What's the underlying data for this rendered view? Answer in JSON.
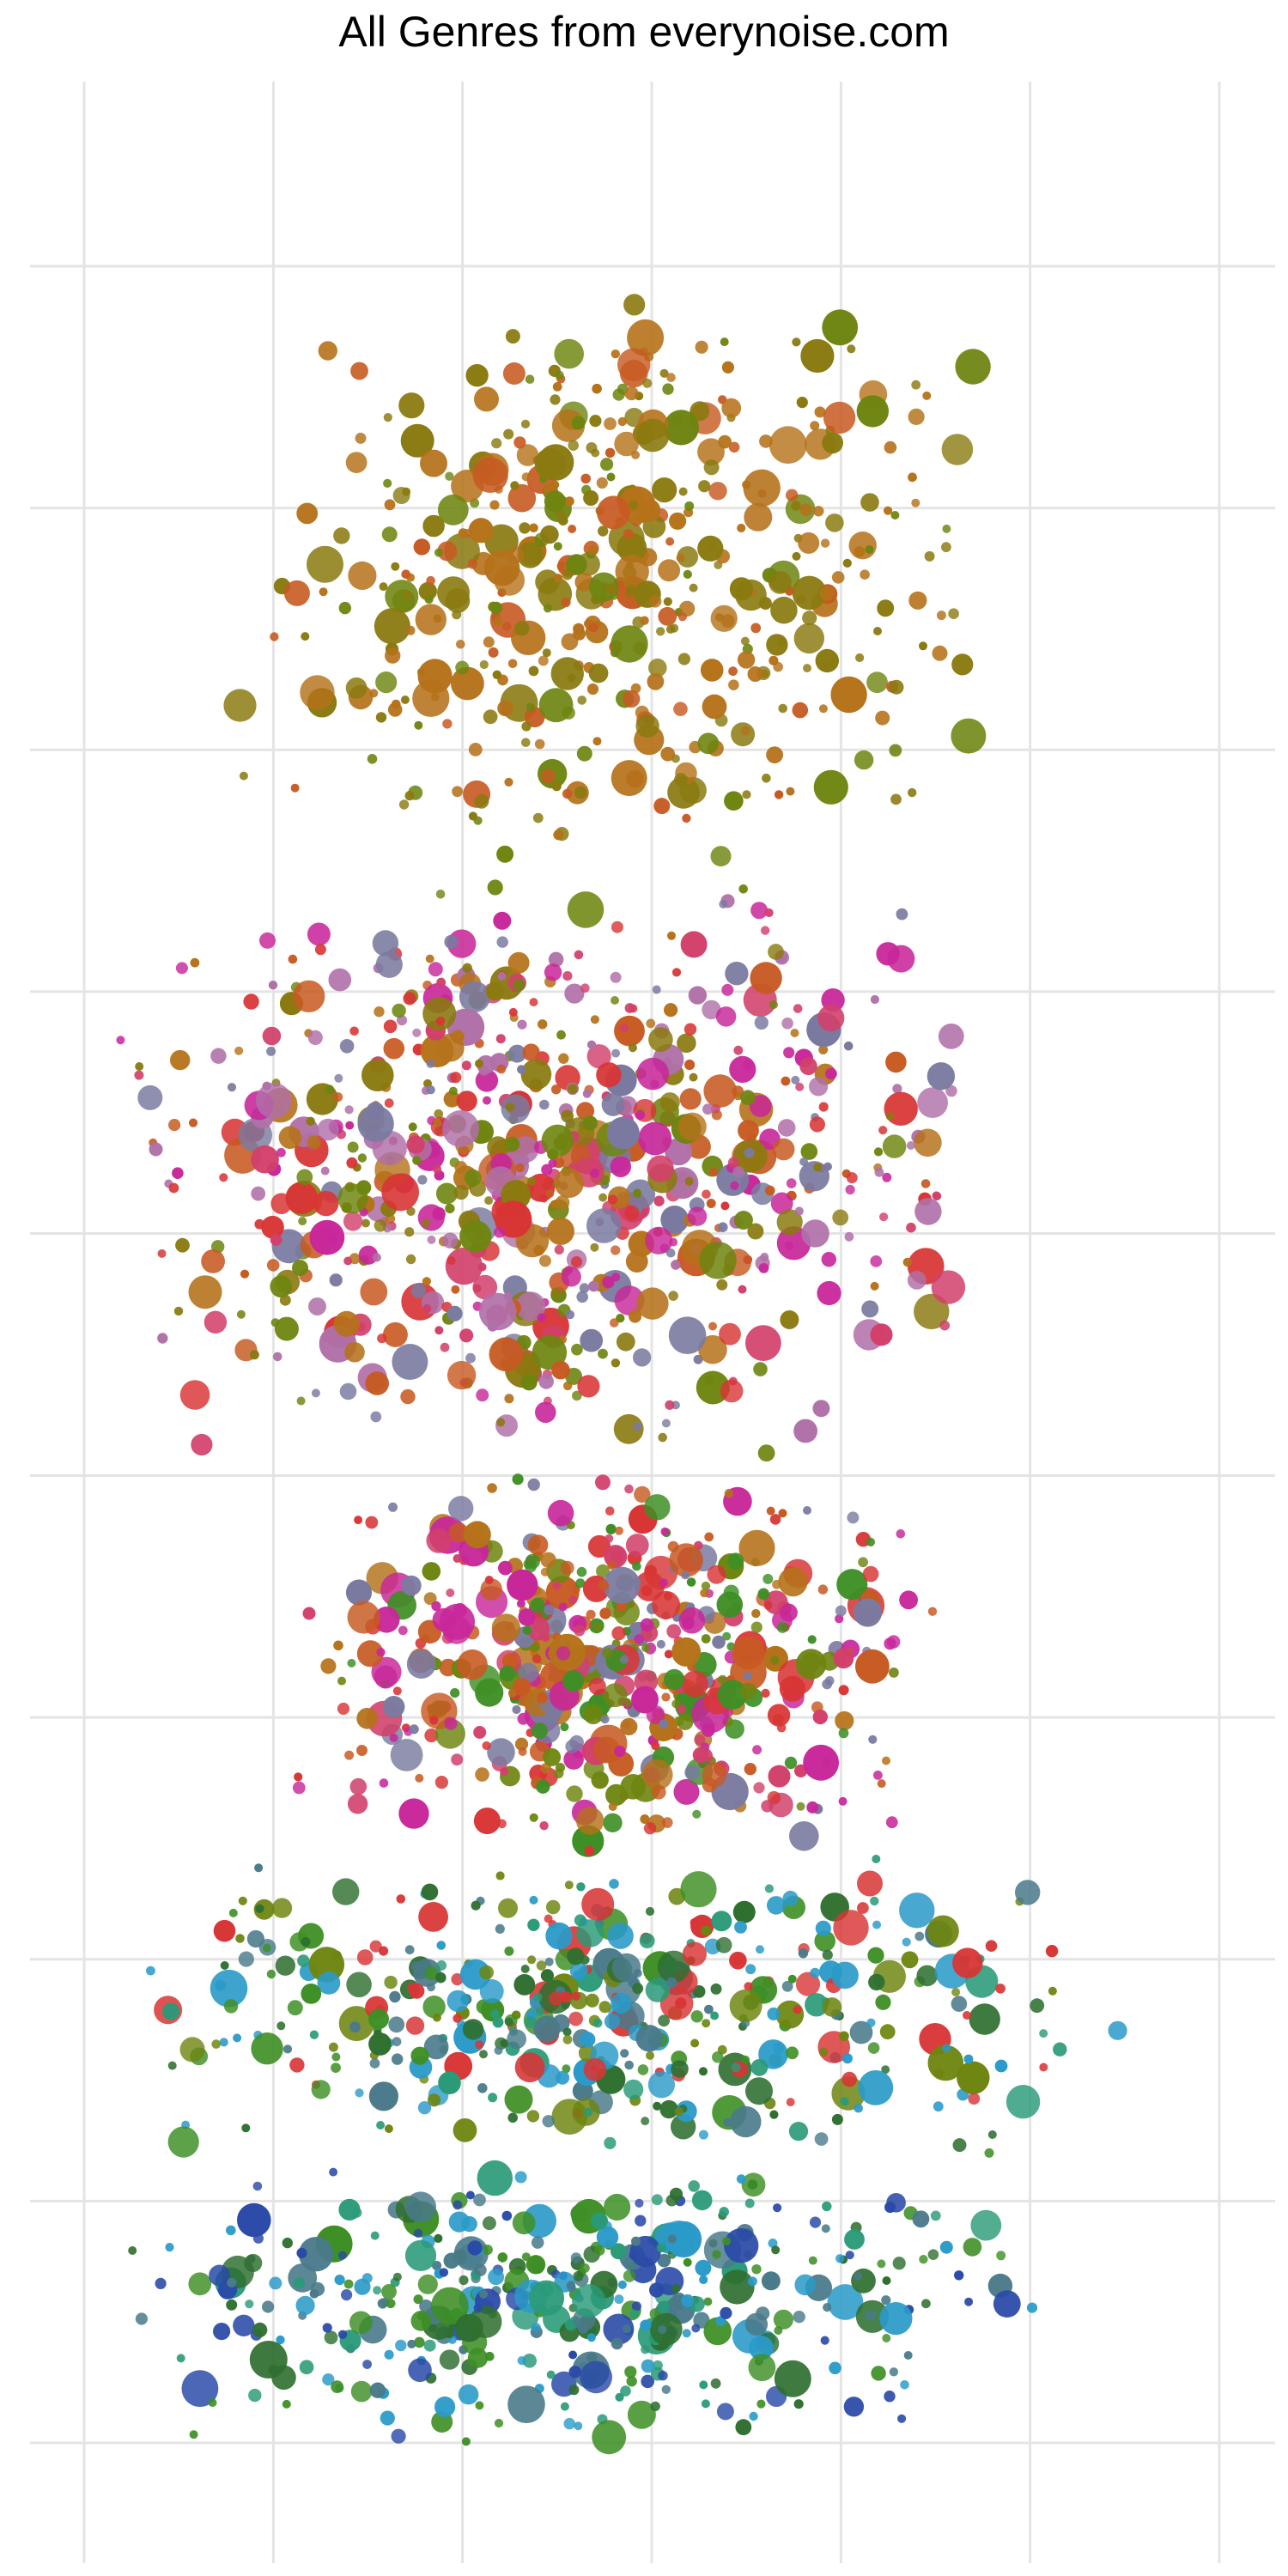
{
  "chart_data": {
    "type": "scatter",
    "title": "All Genres from everynoise.com",
    "xlabel": "",
    "ylabel": "",
    "xlim": [
      0,
      1
    ],
    "ylim": [
      0,
      1
    ],
    "grid": true,
    "legend": "none",
    "x_gridlines": [
      0.0,
      0.1667,
      0.3333,
      0.5,
      0.6667,
      0.8333,
      1.0
    ],
    "y_gridlines": [
      0.0,
      0.1111,
      0.2222,
      0.3333,
      0.4444,
      0.5556,
      0.6667,
      0.7778,
      0.8889,
      1.0
    ],
    "colors": {
      "olive": "#8a7a10",
      "amber": "#b5721a",
      "moss": "#6e8510",
      "rust": "#c75a22",
      "red": "#d83535",
      "crimson": "#d1406b",
      "magenta": "#c8279a",
      "mauve": "#b070a8",
      "slate": "#7a7aa0",
      "purple": "#7a2ab0",
      "green": "#3e8f25",
      "forest": "#2f6f30",
      "teal": "#2a9a78",
      "cyan": "#2a9ac8",
      "steel": "#4a7a8a",
      "blue": "#2a4aa8"
    },
    "density_regions": [
      {
        "x": [
          0.1,
          0.8
        ],
        "y": [
          0.72,
          0.99
        ],
        "count": 480,
        "palette": [
          "olive",
          "amber",
          "moss",
          "olive",
          "amber",
          "rust"
        ]
      },
      {
        "x": [
          0.02,
          0.8
        ],
        "y": [
          0.45,
          0.72
        ],
        "count": 760,
        "palette": [
          "olive",
          "amber",
          "moss",
          "rust",
          "crimson",
          "mauve",
          "slate",
          "magenta",
          "red"
        ]
      },
      {
        "x": [
          0.18,
          0.75
        ],
        "y": [
          0.27,
          0.45
        ],
        "count": 560,
        "palette": [
          "red",
          "rust",
          "crimson",
          "moss",
          "green",
          "slate",
          "magenta",
          "amber"
        ]
      },
      {
        "x": [
          0.02,
          0.92
        ],
        "y": [
          0.13,
          0.27
        ],
        "count": 440,
        "palette": [
          "green",
          "forest",
          "teal",
          "steel",
          "red",
          "moss",
          "cyan"
        ]
      },
      {
        "x": [
          0.02,
          0.85
        ],
        "y": [
          0.0,
          0.13
        ],
        "count": 420,
        "palette": [
          "teal",
          "green",
          "cyan",
          "forest",
          "steel",
          "blue"
        ]
      }
    ]
  }
}
